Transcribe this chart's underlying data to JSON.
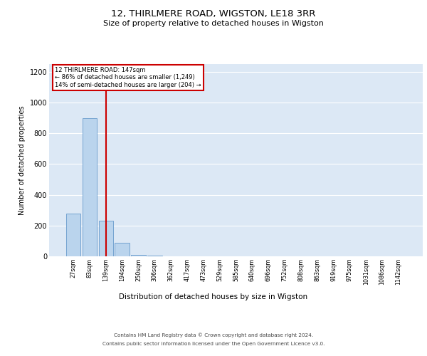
{
  "title": "12, THIRLMERE ROAD, WIGSTON, LE18 3RR",
  "subtitle": "Size of property relative to detached houses in Wigston",
  "xlabel": "Distribution of detached houses by size in Wigston",
  "ylabel": "Number of detached properties",
  "categories": [
    "27sqm",
    "83sqm",
    "139sqm",
    "194sqm",
    "250sqm",
    "306sqm",
    "362sqm",
    "417sqm",
    "473sqm",
    "529sqm",
    "585sqm",
    "640sqm",
    "696sqm",
    "752sqm",
    "808sqm",
    "863sqm",
    "919sqm",
    "975sqm",
    "1031sqm",
    "1086sqm",
    "1142sqm"
  ],
  "values": [
    280,
    900,
    230,
    90,
    10,
    5,
    0,
    0,
    0,
    0,
    0,
    0,
    0,
    0,
    0,
    0,
    0,
    0,
    0,
    0,
    0
  ],
  "bar_color": "#bad4ed",
  "bar_edge_color": "#6699cc",
  "vline_x_index": 2,
  "vline_color": "#cc0000",
  "annotation_line1": "12 THIRLMERE ROAD: 147sqm",
  "annotation_line2": "← 86% of detached houses are smaller (1,249)",
  "annotation_line3": "14% of semi-detached houses are larger (204) →",
  "annotation_box_edgecolor": "#cc0000",
  "ylim": [
    0,
    1250
  ],
  "yticks": [
    0,
    200,
    400,
    600,
    800,
    1000,
    1200
  ],
  "plot_bg_color": "#dce8f5",
  "footer_line1": "Contains HM Land Registry data © Crown copyright and database right 2024.",
  "footer_line2": "Contains public sector information licensed under the Open Government Licence v3.0."
}
